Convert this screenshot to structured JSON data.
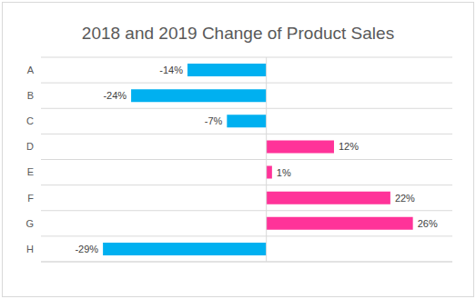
{
  "chart_data": {
    "type": "bar",
    "title": "2018 and 2019 Change of Product Sales",
    "orientation": "horizontal",
    "categories": [
      "A",
      "B",
      "C",
      "D",
      "E",
      "F",
      "G",
      "H"
    ],
    "values": [
      -14,
      -24,
      -7,
      12,
      1,
      22,
      26,
      -29
    ],
    "value_labels": [
      "-14%",
      "-24%",
      "-7%",
      "12%",
      "1%",
      "22%",
      "26%",
      "-29%"
    ],
    "colors": [
      "#00b0f0",
      "#00b0f0",
      "#00b0f0",
      "#ff3399",
      "#ff3399",
      "#ff3399",
      "#ff3399",
      "#00b0f0"
    ],
    "xlim": [
      -40,
      33
    ],
    "xticks": [
      0
    ],
    "grid": true,
    "data_labels": true,
    "tick_labels": "y"
  }
}
